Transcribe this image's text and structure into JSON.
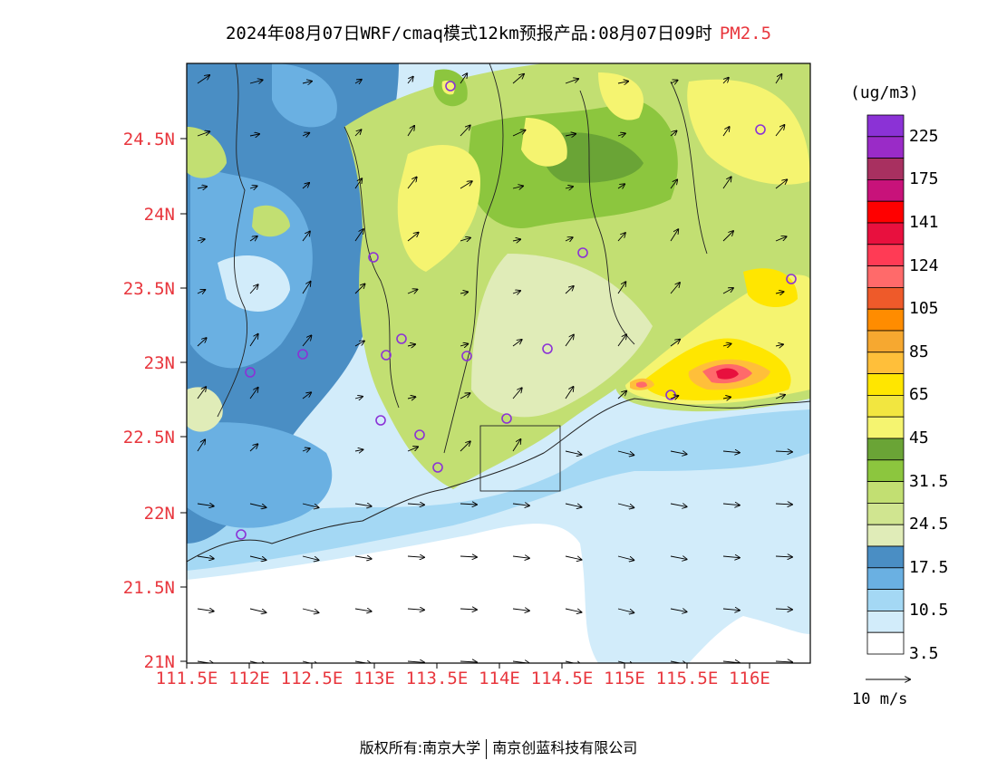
{
  "title": {
    "text": "2024年08月07日WRF/cmaq模式12km预报产品:08月07日09时",
    "pollutant": "PM2.5"
  },
  "axes": {
    "lat_labels": [
      "24.5N",
      "24N",
      "23.5N",
      "23N",
      "22.5N",
      "22N",
      "21.5N",
      "21N"
    ],
    "lon_labels": [
      "111.5E",
      "112E",
      "112.5E",
      "113E",
      "113.5E",
      "114E",
      "114.5E",
      "115E",
      "115.5E",
      "116E"
    ]
  },
  "colorbar": {
    "unit": "(ug/m3)",
    "labels": [
      "225",
      "175",
      "141",
      "124",
      "105",
      "85",
      "65",
      "45",
      "31.5",
      "24.5",
      "17.5",
      "10.5",
      "3.5"
    ],
    "colors": [
      "#8b32d6",
      "#9a2bc7",
      "#a83060",
      "#c8127a",
      "#ff0000",
      "#e8103e",
      "#ff3b55",
      "#ff6a6a",
      "#ee5a2a",
      "#ff8c00",
      "#f6a830",
      "#ffbf3a",
      "#ffe600",
      "#f2e640",
      "#f5f470",
      "#6aa436",
      "#8cc63e",
      "#c2df72",
      "#d0e590",
      "#e0ecb8",
      "#4a8ec4",
      "#6ab0e2",
      "#a4d8f4",
      "#d2ecfa",
      "#ffffff"
    ]
  },
  "wind_reference": "10 m/s",
  "copyright": {
    "left": "版权所有:南京大学",
    "right": "南京创蓝科技有限公司"
  }
}
